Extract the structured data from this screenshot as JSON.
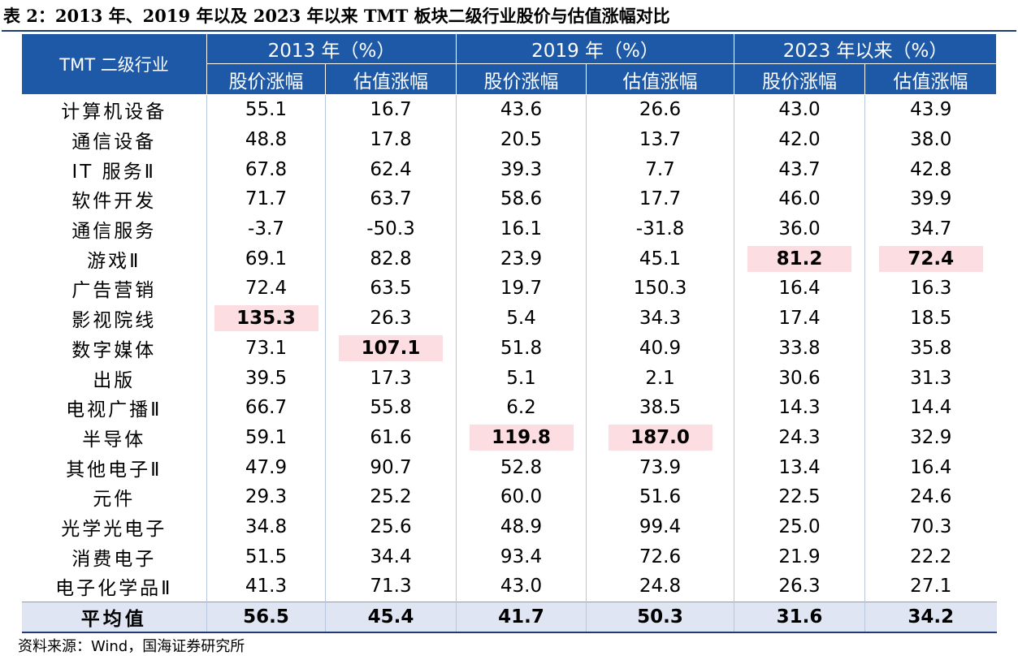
{
  "title": "表 2：2013 年、2019 年以及 2023 年以来 TMT 板块二级行业股价与估值涨幅对比",
  "header": {
    "row_label": "TMT 二级行业",
    "groups": [
      "2013 年（%）",
      "2019 年（%）",
      "2023 年以来（%）"
    ],
    "subheaders": [
      "股价涨幅",
      "估值涨幅",
      "股价涨幅",
      "估值涨幅",
      "股价涨幅",
      "估值涨幅"
    ]
  },
  "rows": [
    {
      "name": "计算机设备",
      "values": [
        "55.1",
        "16.7",
        "43.6",
        "26.6",
        "43.0",
        "43.9"
      ]
    },
    {
      "name": "通信设备",
      "values": [
        "48.8",
        "17.8",
        "20.5",
        "13.7",
        "42.0",
        "38.0"
      ]
    },
    {
      "name": "IT 服务Ⅱ",
      "values": [
        "67.8",
        "62.4",
        "39.3",
        "7.7",
        "43.7",
        "42.8"
      ]
    },
    {
      "name": "软件开发",
      "values": [
        "71.7",
        "63.7",
        "58.6",
        "17.7",
        "46.0",
        "39.9"
      ]
    },
    {
      "name": "通信服务",
      "values": [
        "-3.7",
        "-50.3",
        "16.1",
        "-31.8",
        "36.0",
        "34.7"
      ]
    },
    {
      "name": "游戏Ⅱ",
      "values": [
        "69.1",
        "82.8",
        "23.9",
        "45.1",
        "81.2",
        "72.4"
      ]
    },
    {
      "name": "广告营销",
      "values": [
        "72.4",
        "63.5",
        "19.7",
        "150.3",
        "16.4",
        "16.3"
      ]
    },
    {
      "name": "影视院线",
      "values": [
        "135.3",
        "26.3",
        "5.4",
        "34.3",
        "17.4",
        "18.5"
      ]
    },
    {
      "name": "数字媒体",
      "values": [
        "73.1",
        "107.1",
        "51.8",
        "40.9",
        "33.8",
        "35.8"
      ]
    },
    {
      "name": "出版",
      "values": [
        "39.5",
        "17.3",
        "5.1",
        "2.1",
        "30.6",
        "31.3"
      ]
    },
    {
      "name": "电视广播Ⅱ",
      "values": [
        "66.7",
        "55.8",
        "6.2",
        "38.5",
        "14.3",
        "14.4"
      ]
    },
    {
      "name": "半导体",
      "values": [
        "59.1",
        "61.6",
        "119.8",
        "187.0",
        "24.3",
        "32.9"
      ]
    },
    {
      "name": "其他电子Ⅱ",
      "values": [
        "47.9",
        "90.7",
        "52.8",
        "73.9",
        "13.4",
        "16.4"
      ]
    },
    {
      "name": "元件",
      "values": [
        "29.3",
        "25.2",
        "60.0",
        "51.6",
        "22.5",
        "24.6"
      ]
    },
    {
      "name": "光学光电子",
      "values": [
        "34.8",
        "25.6",
        "48.9",
        "99.4",
        "25.0",
        "70.3"
      ]
    },
    {
      "name": "消费电子",
      "values": [
        "51.5",
        "34.4",
        "93.4",
        "72.6",
        "21.9",
        "22.2"
      ]
    },
    {
      "name": "电子化学品Ⅱ",
      "values": [
        "41.3",
        "71.3",
        "43.0",
        "24.8",
        "26.3",
        "27.1"
      ]
    }
  ],
  "average": {
    "name": "平均值",
    "values": [
      "56.5",
      "45.4",
      "41.7",
      "50.3",
      "31.6",
      "34.2"
    ]
  },
  "highlights": [
    [
      5,
      4
    ],
    [
      5,
      5
    ],
    [
      7,
      0
    ],
    [
      8,
      1
    ],
    [
      11,
      2
    ],
    [
      11,
      3
    ]
  ],
  "colors": {
    "header_bg": "#1e59a7",
    "highlight_bg": "#fbdde2",
    "average_bg": "#dfe5f3"
  },
  "source": "资料来源：Wind，国海证券研究所"
}
